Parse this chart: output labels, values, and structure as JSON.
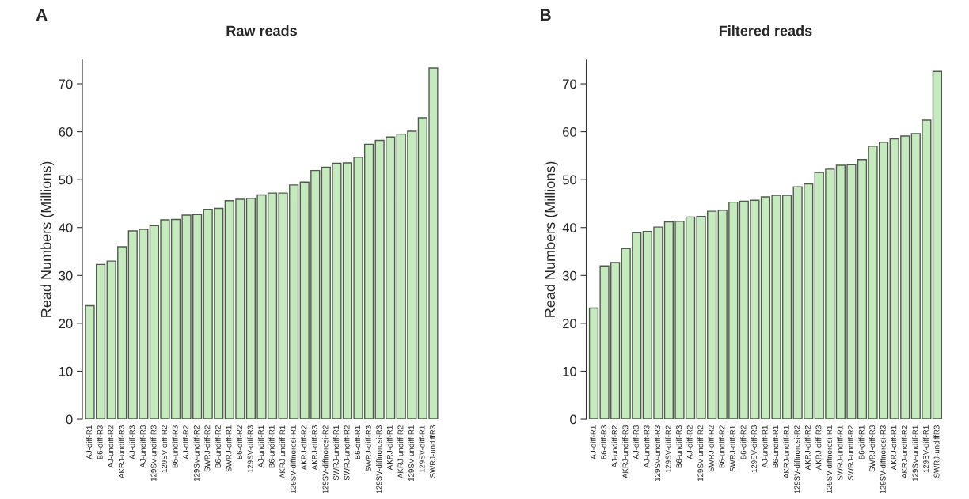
{
  "chart_data": [
    {
      "type": "bar",
      "title": "Raw reads",
      "ylabel": "Read Numbers (Millions)",
      "annotations": [
        "A"
      ],
      "categories": [
        "AJ-diff-R1",
        "B6-diff-R3",
        "AJ-undiff-R2",
        "AKRJ-undiff-R3",
        "AJ-diff-R3",
        "AJ-undiff-R3",
        "129SV-undiff-R3",
        "129SV-diff-R2",
        "B6-undiff-R3",
        "AJ-diff-R2",
        "129SV-undiff-R2",
        "SWRJ-diff-R2",
        "B6-undiff-R2",
        "SWRJ-diff-R1",
        "B6-diff-R2",
        "129SV-diff-R3",
        "AJ-undiff-R1",
        "B6-undiff-R1",
        "AKRJ-undiff-R1",
        "129SV-diffnorosi-R1",
        "AKRJ-diff-R2",
        "AKRJ-diff-R3",
        "129SV-diffnorosi-R2",
        "SWRJ-undiff-R1",
        "SWRJ-undiff-R2",
        "B6-diff-R1",
        "SWRJ-diff-R3",
        "129SV-diffnorosi-R3",
        "AKRJ-diff-R1",
        "AKRJ-undiff-R2",
        "129SV-undiff-R1",
        "129SV-diff-R1",
        "SWRJ-undiffR3"
      ],
      "values": [
        23.7,
        32.3,
        33.0,
        36.0,
        39.3,
        39.6,
        40.4,
        41.6,
        41.7,
        42.6,
        42.7,
        43.8,
        44.0,
        45.6,
        45.9,
        46.1,
        46.8,
        47.2,
        47.2,
        48.9,
        49.5,
        51.9,
        52.6,
        53.4,
        53.5,
        54.7,
        57.4,
        58.2,
        58.9,
        59.5,
        60.1,
        62.9,
        73.3
      ],
      "color": "#c7e9c0",
      "ylim": [
        0,
        75
      ],
      "yticks": [
        0,
        10,
        20,
        30,
        40,
        50,
        60,
        70
      ],
      "grid": false
    },
    {
      "type": "bar",
      "title": "Filtered reads",
      "ylabel": "Read Numbers (Millions)",
      "annotations": [
        "B"
      ],
      "categories": [
        "AJ-diff-R1",
        "B6-diff-R3",
        "AJ-undiff-R2",
        "AKRJ-undiff-R3",
        "AJ-diff-R3",
        "AJ-undiff-R3",
        "129SV-undiff-R3",
        "129SV-diff-R2",
        "B6-undiff-R3",
        "AJ-diff-R2",
        "129SV-undiff-R2",
        "SWRJ-diff-R2",
        "B6-undiff-R2",
        "SWRJ-diff-R1",
        "B6-diff-R2",
        "129SV-diff-R3",
        "AJ-undiff-R1",
        "B6-undiff-R1",
        "AKRJ-undiff-R1",
        "129SV-diffnorosi-R2",
        "AKRJ-diff-R2",
        "AKRJ-diff-R3",
        "129SV-diffnorosi-R1",
        "SWRJ-undiff-R1",
        "SWRJ-undiff-R2",
        "B6-diff-R1",
        "SWRJ-diff-R3",
        "129SV-diffnorosi-R3",
        "AKRJ-diff-R1",
        "AKRJ-undiff-R2",
        "129SV-undiff-R1",
        "129SV-diff-R1",
        "SWRJ-undiffR3"
      ],
      "values": [
        23.2,
        32.0,
        32.7,
        35.6,
        38.9,
        39.2,
        40.1,
        41.2,
        41.3,
        42.2,
        42.3,
        43.4,
        43.6,
        45.3,
        45.5,
        45.7,
        46.4,
        46.7,
        46.7,
        48.5,
        49.1,
        51.5,
        52.2,
        53.0,
        53.1,
        54.2,
        57.0,
        57.8,
        58.5,
        59.1,
        59.6,
        62.4,
        72.6
      ],
      "color": "#c7e9c0",
      "ylim": [
        0,
        75
      ],
      "yticks": [
        0,
        10,
        20,
        30,
        40,
        50,
        60,
        70
      ],
      "grid": false
    }
  ]
}
